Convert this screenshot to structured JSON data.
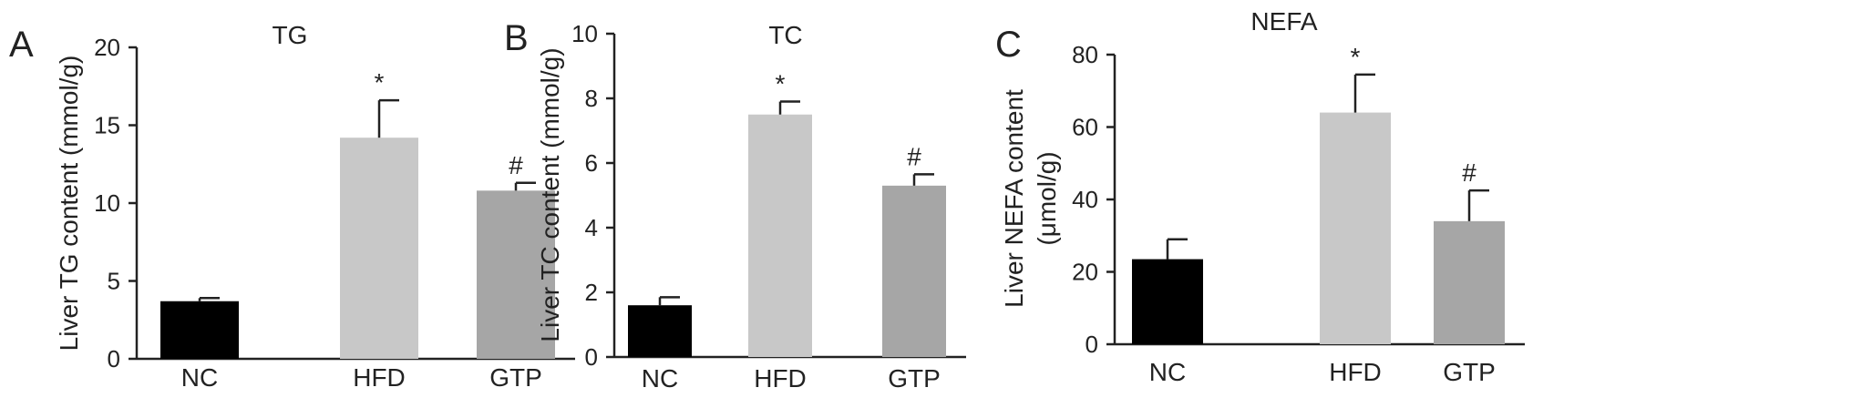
{
  "chart_data": [
    {
      "type": "bar",
      "panel": "A",
      "title": "TG",
      "ylabel": "Liver TG content (mmol/g)",
      "categories": [
        "NC",
        "HFD",
        "GTP"
      ],
      "values": [
        3.7,
        14.2,
        10.8
      ],
      "errors": [
        0.2,
        2.4,
        0.5
      ],
      "significance": [
        "",
        "*",
        "#"
      ],
      "ylim": [
        0,
        20
      ],
      "yticks": [
        0,
        5,
        10,
        15,
        20
      ],
      "ytick_labels": [
        "0",
        "5",
        "10",
        "15",
        "20"
      ],
      "colors": [
        "#000000",
        "#c8c8c8",
        "#a6a6a6"
      ]
    },
    {
      "type": "bar",
      "panel": "B",
      "title": "TC",
      "ylabel": "Liver TC content (mmol/g)",
      "categories": [
        "NC",
        "HFD",
        "GTP"
      ],
      "values": [
        1.6,
        7.5,
        5.3
      ],
      "errors": [
        0.25,
        0.4,
        0.35
      ],
      "significance": [
        "",
        "*",
        "#"
      ],
      "ylim": [
        0,
        10
      ],
      "yticks": [
        0,
        2,
        4,
        6,
        8,
        10
      ],
      "ytick_labels": [
        "0",
        "2",
        "4",
        "6",
        "8",
        "10"
      ],
      "colors": [
        "#000000",
        "#c8c8c8",
        "#a6a6a6"
      ]
    },
    {
      "type": "bar",
      "panel": "C",
      "title": "NEFA",
      "ylabel": [
        "Liver NEFA content",
        "(μmol/g)"
      ],
      "categories": [
        "NC",
        "HFD",
        "GTP"
      ],
      "values": [
        23.5,
        64,
        34
      ],
      "errors": [
        5.5,
        10.5,
        8.5
      ],
      "significance": [
        "",
        "*",
        "#"
      ],
      "ylim": [
        0,
        80
      ],
      "yticks": [
        0,
        20,
        40,
        60,
        80
      ],
      "ytick_labels": [
        "0",
        "20",
        "40",
        "60",
        "80"
      ],
      "colors": [
        "#000000",
        "#c8c8c8",
        "#a6a6a6"
      ]
    }
  ]
}
